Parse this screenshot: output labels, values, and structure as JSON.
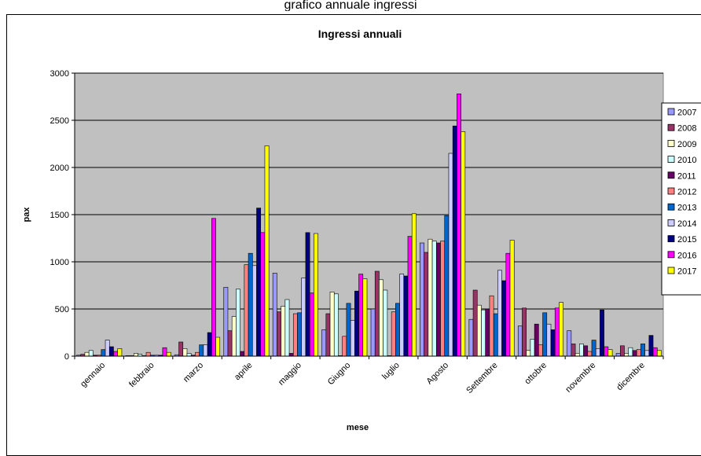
{
  "top_fragment": "grafico annuale ingressi",
  "chart_data": {
    "type": "bar",
    "title": "Ingressi annuali",
    "xlabel": "mese",
    "ylabel": "pax",
    "ylim": [
      0,
      3000
    ],
    "yticks": [
      0,
      500,
      1000,
      1500,
      2000,
      2500,
      3000
    ],
    "grid": true,
    "legend_position": "right",
    "categories": [
      "gennaio",
      "febbraio",
      "marzo",
      "aprile",
      "maggio",
      "Giugno",
      "luglio",
      "Agosto",
      "Settembre",
      "ottobre",
      "novembre",
      "dicembre"
    ],
    "series": [
      {
        "name": "2007",
        "color": "#9999ff",
        "values": [
          10,
          5,
          15,
          730,
          880,
          280,
          500,
          1200,
          390,
          320,
          270,
          30
        ]
      },
      {
        "name": "2008",
        "color": "#993366",
        "values": [
          20,
          5,
          150,
          270,
          470,
          450,
          900,
          1100,
          700,
          510,
          130,
          110
        ]
      },
      {
        "name": "2009",
        "color": "#ffffcc",
        "values": [
          40,
          30,
          80,
          420,
          530,
          680,
          810,
          1240,
          540,
          60,
          30,
          30
        ]
      },
      {
        "name": "2010",
        "color": "#ccffff",
        "values": [
          60,
          20,
          30,
          710,
          600,
          660,
          700,
          1220,
          490,
          180,
          130,
          90
        ]
      },
      {
        "name": "2011",
        "color": "#660066",
        "values": [
          10,
          5,
          10,
          50,
          30,
          5,
          5,
          1200,
          500,
          340,
          110,
          60
        ]
      },
      {
        "name": "2012",
        "color": "#ff8080",
        "values": [
          10,
          40,
          40,
          970,
          450,
          210,
          470,
          1220,
          640,
          120,
          50,
          70
        ]
      },
      {
        "name": "2013",
        "color": "#0066cc",
        "values": [
          70,
          10,
          120,
          1090,
          460,
          560,
          560,
          1490,
          450,
          460,
          170,
          130
        ]
      },
      {
        "name": "2014",
        "color": "#ccccff",
        "values": [
          170,
          10,
          120,
          960,
          830,
          380,
          870,
          2150,
          910,
          340,
          80,
          60
        ]
      },
      {
        "name": "2015",
        "color": "#000080",
        "values": [
          100,
          10,
          250,
          1570,
          1310,
          690,
          850,
          2440,
          800,
          280,
          490,
          220
        ]
      },
      {
        "name": "2016",
        "color": "#ff00ff",
        "values": [
          50,
          90,
          1460,
          1310,
          670,
          870,
          1270,
          2780,
          1090,
          510,
          100,
          90
        ]
      },
      {
        "name": "2017",
        "color": "#ffff00",
        "values": [
          80,
          40,
          200,
          2230,
          1300,
          820,
          1510,
          2380,
          1230,
          570,
          70,
          60
        ]
      }
    ]
  }
}
